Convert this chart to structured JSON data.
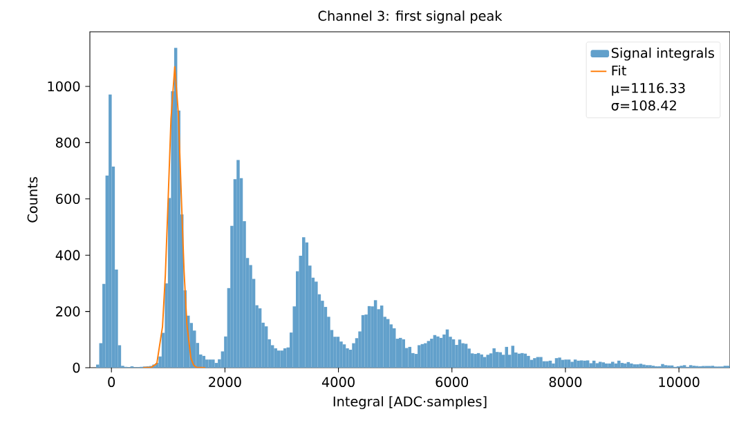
{
  "chart_data": {
    "type": "histogram",
    "title": "Channel 3: first signal peak",
    "xlabel": "Integral [ADC·samples]",
    "ylabel": "Counts",
    "xlim": [
      -380,
      10900
    ],
    "ylim": [
      0,
      1194
    ],
    "xticks": [
      0,
      2000,
      4000,
      6000,
      8000,
      10000
    ],
    "yticks": [
      0,
      200,
      400,
      600,
      800,
      1000
    ],
    "legend": "top right",
    "annotations": [
      "μ=1116.33",
      "σ=108.42"
    ],
    "series": [
      {
        "name": "Signal integrals",
        "color": "#62a0cb",
        "bins": [
          -270,
          -215,
          -160,
          -105,
          -50,
          5,
          60,
          115,
          170,
          225,
          280,
          335,
          390,
          445,
          500,
          555,
          610,
          665,
          720,
          775,
          830,
          885,
          940,
          995,
          1050,
          1105,
          1160,
          1215,
          1270,
          1325,
          1380,
          1435,
          1490,
          1545,
          1600,
          1655,
          1710,
          1765,
          1820,
          1875,
          1930,
          1985,
          2040,
          2095,
          2150,
          2205,
          2260,
          2315,
          2370,
          2425,
          2480,
          2535,
          2590,
          2645,
          2700,
          2755,
          2810,
          2865,
          2920,
          2975,
          3030,
          3085,
          3140,
          3195,
          3250,
          3305,
          3360,
          3415,
          3470,
          3525,
          3580,
          3635,
          3690,
          3745,
          3800,
          3855,
          3910,
          3965,
          4020,
          4075,
          4130,
          4185,
          4240,
          4295,
          4350,
          4405,
          4460,
          4515,
          4570,
          4625,
          4680,
          4735,
          4790,
          4845,
          4900,
          4955,
          5010,
          5065,
          5120,
          5175,
          5230,
          5285,
          5340,
          5395,
          5450,
          5505,
          5560,
          5615,
          5670,
          5725,
          5780,
          5835,
          5890,
          5945,
          6000,
          6055,
          6110,
          6165,
          6220,
          6275,
          6330,
          6385,
          6440,
          6495,
          6550,
          6605,
          6660,
          6715,
          6770,
          6825,
          6880,
          6935,
          6990,
          7045,
          7100,
          7155,
          7210,
          7265,
          7320,
          7375,
          7430,
          7485,
          7540,
          7595,
          7650,
          7705,
          7760,
          7815,
          7870,
          7925,
          7980,
          8035,
          8090,
          8145,
          8200,
          8255,
          8310,
          8365,
          8420,
          8475,
          8530,
          8585,
          8640,
          8695,
          8750,
          8805,
          8860,
          8915,
          8970,
          9025,
          9080,
          9135,
          9190,
          9245,
          9300,
          9355,
          9410,
          9465,
          9520,
          9575,
          9630,
          9685,
          9740,
          9795,
          9850,
          9905,
          9960,
          10015,
          10070,
          10125,
          10180,
          10235,
          10290,
          10345,
          10400,
          10455,
          10510,
          10565,
          10620,
          10675,
          10730,
          10785,
          10840,
          10895
        ],
        "values": [
          11,
          87,
          298,
          683,
          971,
          715,
          349,
          80,
          7,
          3,
          2,
          5,
          2,
          2,
          3,
          4,
          5,
          6,
          11,
          17,
          40,
          124,
          300,
          603,
          983,
          1137,
          914,
          545,
          275,
          185,
          159,
          132,
          88,
          47,
          42,
          29,
          29,
          29,
          17,
          30,
          58,
          111,
          283,
          504,
          670,
          738,
          674,
          521,
          390,
          365,
          316,
          222,
          211,
          160,
          147,
          101,
          80,
          69,
          61,
          61,
          69,
          72,
          125,
          218,
          343,
          398,
          464,
          445,
          363,
          320,
          306,
          261,
          238,
          216,
          181,
          134,
          110,
          110,
          93,
          83,
          69,
          64,
          87,
          105,
          129,
          187,
          189,
          219,
          218,
          240,
          208,
          221,
          181,
          173,
          154,
          140,
          103,
          106,
          101,
          70,
          74,
          52,
          49,
          80,
          84,
          87,
          95,
          103,
          116,
          111,
          106,
          118,
          136,
          110,
          101,
          81,
          100,
          87,
          85,
          68,
          51,
          49,
          52,
          47,
          38,
          46,
          51,
          69,
          56,
          55,
          46,
          74,
          46,
          78,
          54,
          50,
          52,
          50,
          42,
          28,
          34,
          38,
          38,
          23,
          23,
          25,
          15,
          34,
          36,
          28,
          29,
          29,
          21,
          29,
          25,
          26,
          25,
          26,
          16,
          25,
          16,
          21,
          19,
          15,
          15,
          21,
          15,
          25,
          17,
          15,
          20,
          15,
          12,
          12,
          14,
          11,
          9,
          9,
          7,
          5,
          5,
          13,
          9,
          8,
          8,
          3,
          5,
          7,
          9,
          3,
          9,
          7,
          6,
          5,
          6,
          6,
          6,
          7,
          4,
          4,
          4,
          7,
          7
        ]
      },
      {
        "name": "Fit",
        "type": "line",
        "color": "#ff7f0e",
        "x": [
          560,
          700,
          800,
          900,
          950,
          1000,
          1050,
          1116,
          1180,
          1230,
          1280,
          1330,
          1400,
          1450,
          1500,
          1655
        ],
        "values": [
          0,
          1,
          15,
          146,
          329,
          601,
          887,
          1070,
          901,
          616,
          342,
          153,
          34,
          9,
          1,
          0
        ]
      }
    ]
  }
}
